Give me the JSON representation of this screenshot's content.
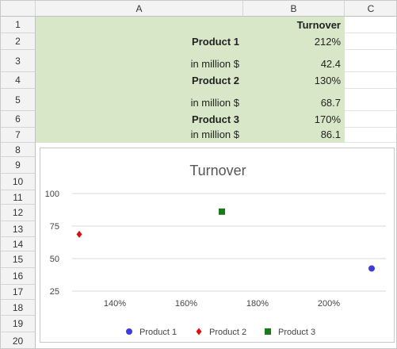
{
  "spreadsheet": {
    "columns": [
      "A",
      "B",
      "C"
    ],
    "rows": [
      "1",
      "2",
      "3",
      "4",
      "5",
      "6",
      "7",
      "8",
      "9",
      "10",
      "11",
      "12",
      "13",
      "14",
      "15",
      "16",
      "17",
      "18",
      "19",
      "20"
    ],
    "cells": {
      "b1": "Turnover",
      "a2": "Product 1",
      "b2": "212%",
      "a3": "in million $",
      "b3": "42.4",
      "a4": "Product 2",
      "b4": "130%",
      "a5": "in million $",
      "b5": "68.7",
      "a6": "Product 3",
      "b6": "170%",
      "a7": "in million $",
      "b7": "86.1"
    }
  },
  "colors": {
    "highlight": "#d9e7c9",
    "series1": "#3c3cdc",
    "series2": "#dd1111",
    "series3": "#1a7a1a"
  },
  "chart_data": {
    "type": "scatter",
    "title": "Turnover",
    "xlabel": "",
    "ylabel": "",
    "xlim": [
      1.28,
      2.16
    ],
    "ylim": [
      25,
      100
    ],
    "x_ticks": [
      "140%",
      "160%",
      "180%",
      "200%"
    ],
    "x_tick_values": [
      1.4,
      1.6,
      1.8,
      2.0
    ],
    "y_ticks": [
      "100",
      "75",
      "50",
      "25"
    ],
    "y_tick_values": [
      100,
      75,
      50,
      25
    ],
    "grid": true,
    "legend_position": "bottom",
    "series": [
      {
        "name": "Product 1",
        "marker": "circle",
        "color": "#3c3cdc",
        "points": [
          [
            2.12,
            42.4
          ]
        ]
      },
      {
        "name": "Product 2",
        "marker": "diamond",
        "color": "#dd1111",
        "points": [
          [
            1.3,
            68.7
          ]
        ]
      },
      {
        "name": "Product 3",
        "marker": "square",
        "color": "#1a7a1a",
        "points": [
          [
            1.7,
            86.1
          ]
        ]
      }
    ]
  }
}
